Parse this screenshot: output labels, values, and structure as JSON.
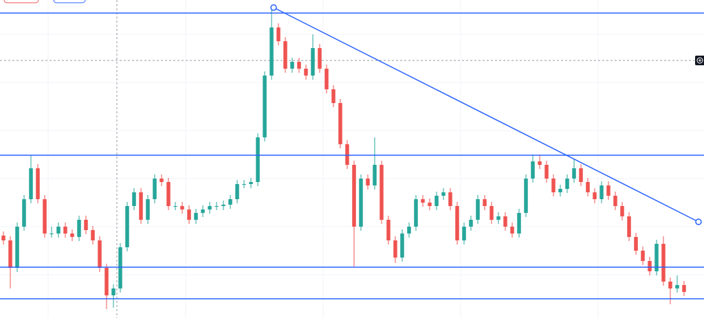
{
  "chart_data": {
    "type": "candlestick",
    "up_color": "#26a69a",
    "down_color": "#ef5350",
    "line_color": "#2962ff",
    "xlim": [
      -0.5,
      101.9
    ],
    "ylim": [
      0,
      463
    ],
    "candles": [
      [
        120,
        126,
        107,
        113
      ],
      [
        113,
        119,
        43,
        73
      ],
      [
        73,
        139,
        67,
        133
      ],
      [
        133,
        179,
        127,
        173
      ],
      [
        173,
        237,
        167,
        218
      ],
      [
        218,
        224,
        167,
        173
      ],
      [
        173,
        179,
        117,
        123
      ],
      [
        123,
        133,
        117,
        123
      ],
      [
        123,
        139,
        117,
        133
      ],
      [
        133,
        139,
        117,
        123
      ],
      [
        123,
        129,
        112,
        118
      ],
      [
        118,
        149,
        112,
        143
      ],
      [
        143,
        149,
        122,
        128
      ],
      [
        128,
        134,
        107,
        113
      ],
      [
        113,
        119,
        67,
        73
      ],
      [
        73,
        79,
        13,
        33
      ],
      [
        33,
        49,
        15,
        43
      ],
      [
        43,
        109,
        37,
        103
      ],
      [
        103,
        169,
        97,
        163
      ],
      [
        163,
        189,
        157,
        183
      ],
      [
        183,
        189,
        137,
        143
      ],
      [
        143,
        179,
        137,
        173
      ],
      [
        173,
        209,
        167,
        203
      ],
      [
        203,
        209,
        192,
        198
      ],
      [
        198,
        204,
        157,
        163
      ],
      [
        163,
        169,
        157,
        163
      ],
      [
        163,
        169,
        152,
        158
      ],
      [
        158,
        164,
        137,
        143
      ],
      [
        143,
        159,
        137,
        153
      ],
      [
        153,
        164,
        147,
        158
      ],
      [
        158,
        169,
        152,
        163
      ],
      [
        163,
        169,
        157,
        163
      ],
      [
        163,
        171,
        157,
        165
      ],
      [
        165,
        179,
        159,
        173
      ],
      [
        173,
        201,
        167,
        195
      ],
      [
        195,
        201,
        189,
        195
      ],
      [
        195,
        204,
        189,
        198
      ],
      [
        198,
        269,
        192,
        263
      ],
      [
        263,
        359,
        257,
        353
      ],
      [
        353,
        452,
        347,
        423
      ],
      [
        423,
        429,
        397,
        403
      ],
      [
        403,
        409,
        357,
        363
      ],
      [
        363,
        379,
        357,
        373
      ],
      [
        373,
        379,
        357,
        363
      ],
      [
        363,
        369,
        347,
        353
      ],
      [
        353,
        413,
        347,
        393
      ],
      [
        393,
        399,
        357,
        363
      ],
      [
        363,
        369,
        327,
        333
      ],
      [
        333,
        339,
        307,
        313
      ],
      [
        313,
        319,
        247,
        253
      ],
      [
        253,
        259,
        217,
        223
      ],
      [
        223,
        229,
        75,
        133
      ],
      [
        133,
        209,
        127,
        203
      ],
      [
        203,
        209,
        187,
        193
      ],
      [
        193,
        263,
        187,
        223
      ],
      [
        223,
        229,
        137,
        143
      ],
      [
        143,
        149,
        107,
        113
      ],
      [
        113,
        119,
        80,
        88
      ],
      [
        88,
        129,
        82,
        123
      ],
      [
        123,
        139,
        117,
        133
      ],
      [
        133,
        179,
        127,
        173
      ],
      [
        173,
        179,
        162,
        168
      ],
      [
        168,
        174,
        157,
        163
      ],
      [
        163,
        184,
        157,
        178
      ],
      [
        178,
        189,
        172,
        183
      ],
      [
        183,
        189,
        157,
        163
      ],
      [
        163,
        169,
        107,
        113
      ],
      [
        113,
        139,
        107,
        133
      ],
      [
        133,
        149,
        127,
        143
      ],
      [
        143,
        179,
        137,
        173
      ],
      [
        173,
        179,
        157,
        163
      ],
      [
        163,
        169,
        137,
        143
      ],
      [
        143,
        154,
        137,
        148
      ],
      [
        148,
        154,
        127,
        133
      ],
      [
        133,
        139,
        117,
        123
      ],
      [
        123,
        159,
        117,
        153
      ],
      [
        153,
        209,
        147,
        203
      ],
      [
        203,
        238,
        197,
        228
      ],
      [
        228,
        238,
        217,
        223
      ],
      [
        223,
        229,
        197,
        203
      ],
      [
        203,
        209,
        177,
        183
      ],
      [
        183,
        194,
        177,
        188
      ],
      [
        188,
        209,
        182,
        203
      ],
      [
        203,
        232,
        197,
        218
      ],
      [
        218,
        224,
        192,
        198
      ],
      [
        198,
        204,
        177,
        183
      ],
      [
        183,
        189,
        167,
        173
      ],
      [
        173,
        199,
        167,
        193
      ],
      [
        193,
        199,
        172,
        178
      ],
      [
        178,
        184,
        157,
        163
      ],
      [
        163,
        169,
        142,
        148
      ],
      [
        148,
        154,
        112,
        118
      ],
      [
        118,
        124,
        92,
        98
      ],
      [
        98,
        104,
        77,
        83
      ],
      [
        83,
        89,
        62,
        68
      ],
      [
        68,
        114,
        62,
        108
      ],
      [
        108,
        119,
        47,
        53
      ],
      [
        53,
        59,
        20,
        43
      ],
      [
        43,
        62,
        37,
        48
      ],
      [
        48,
        54,
        32,
        38
      ]
    ],
    "levels": [
      444,
      237,
      74,
      28
    ],
    "trendline": [
      [
        39.3,
        452
      ],
      [
        101.1,
        140
      ]
    ]
  }
}
